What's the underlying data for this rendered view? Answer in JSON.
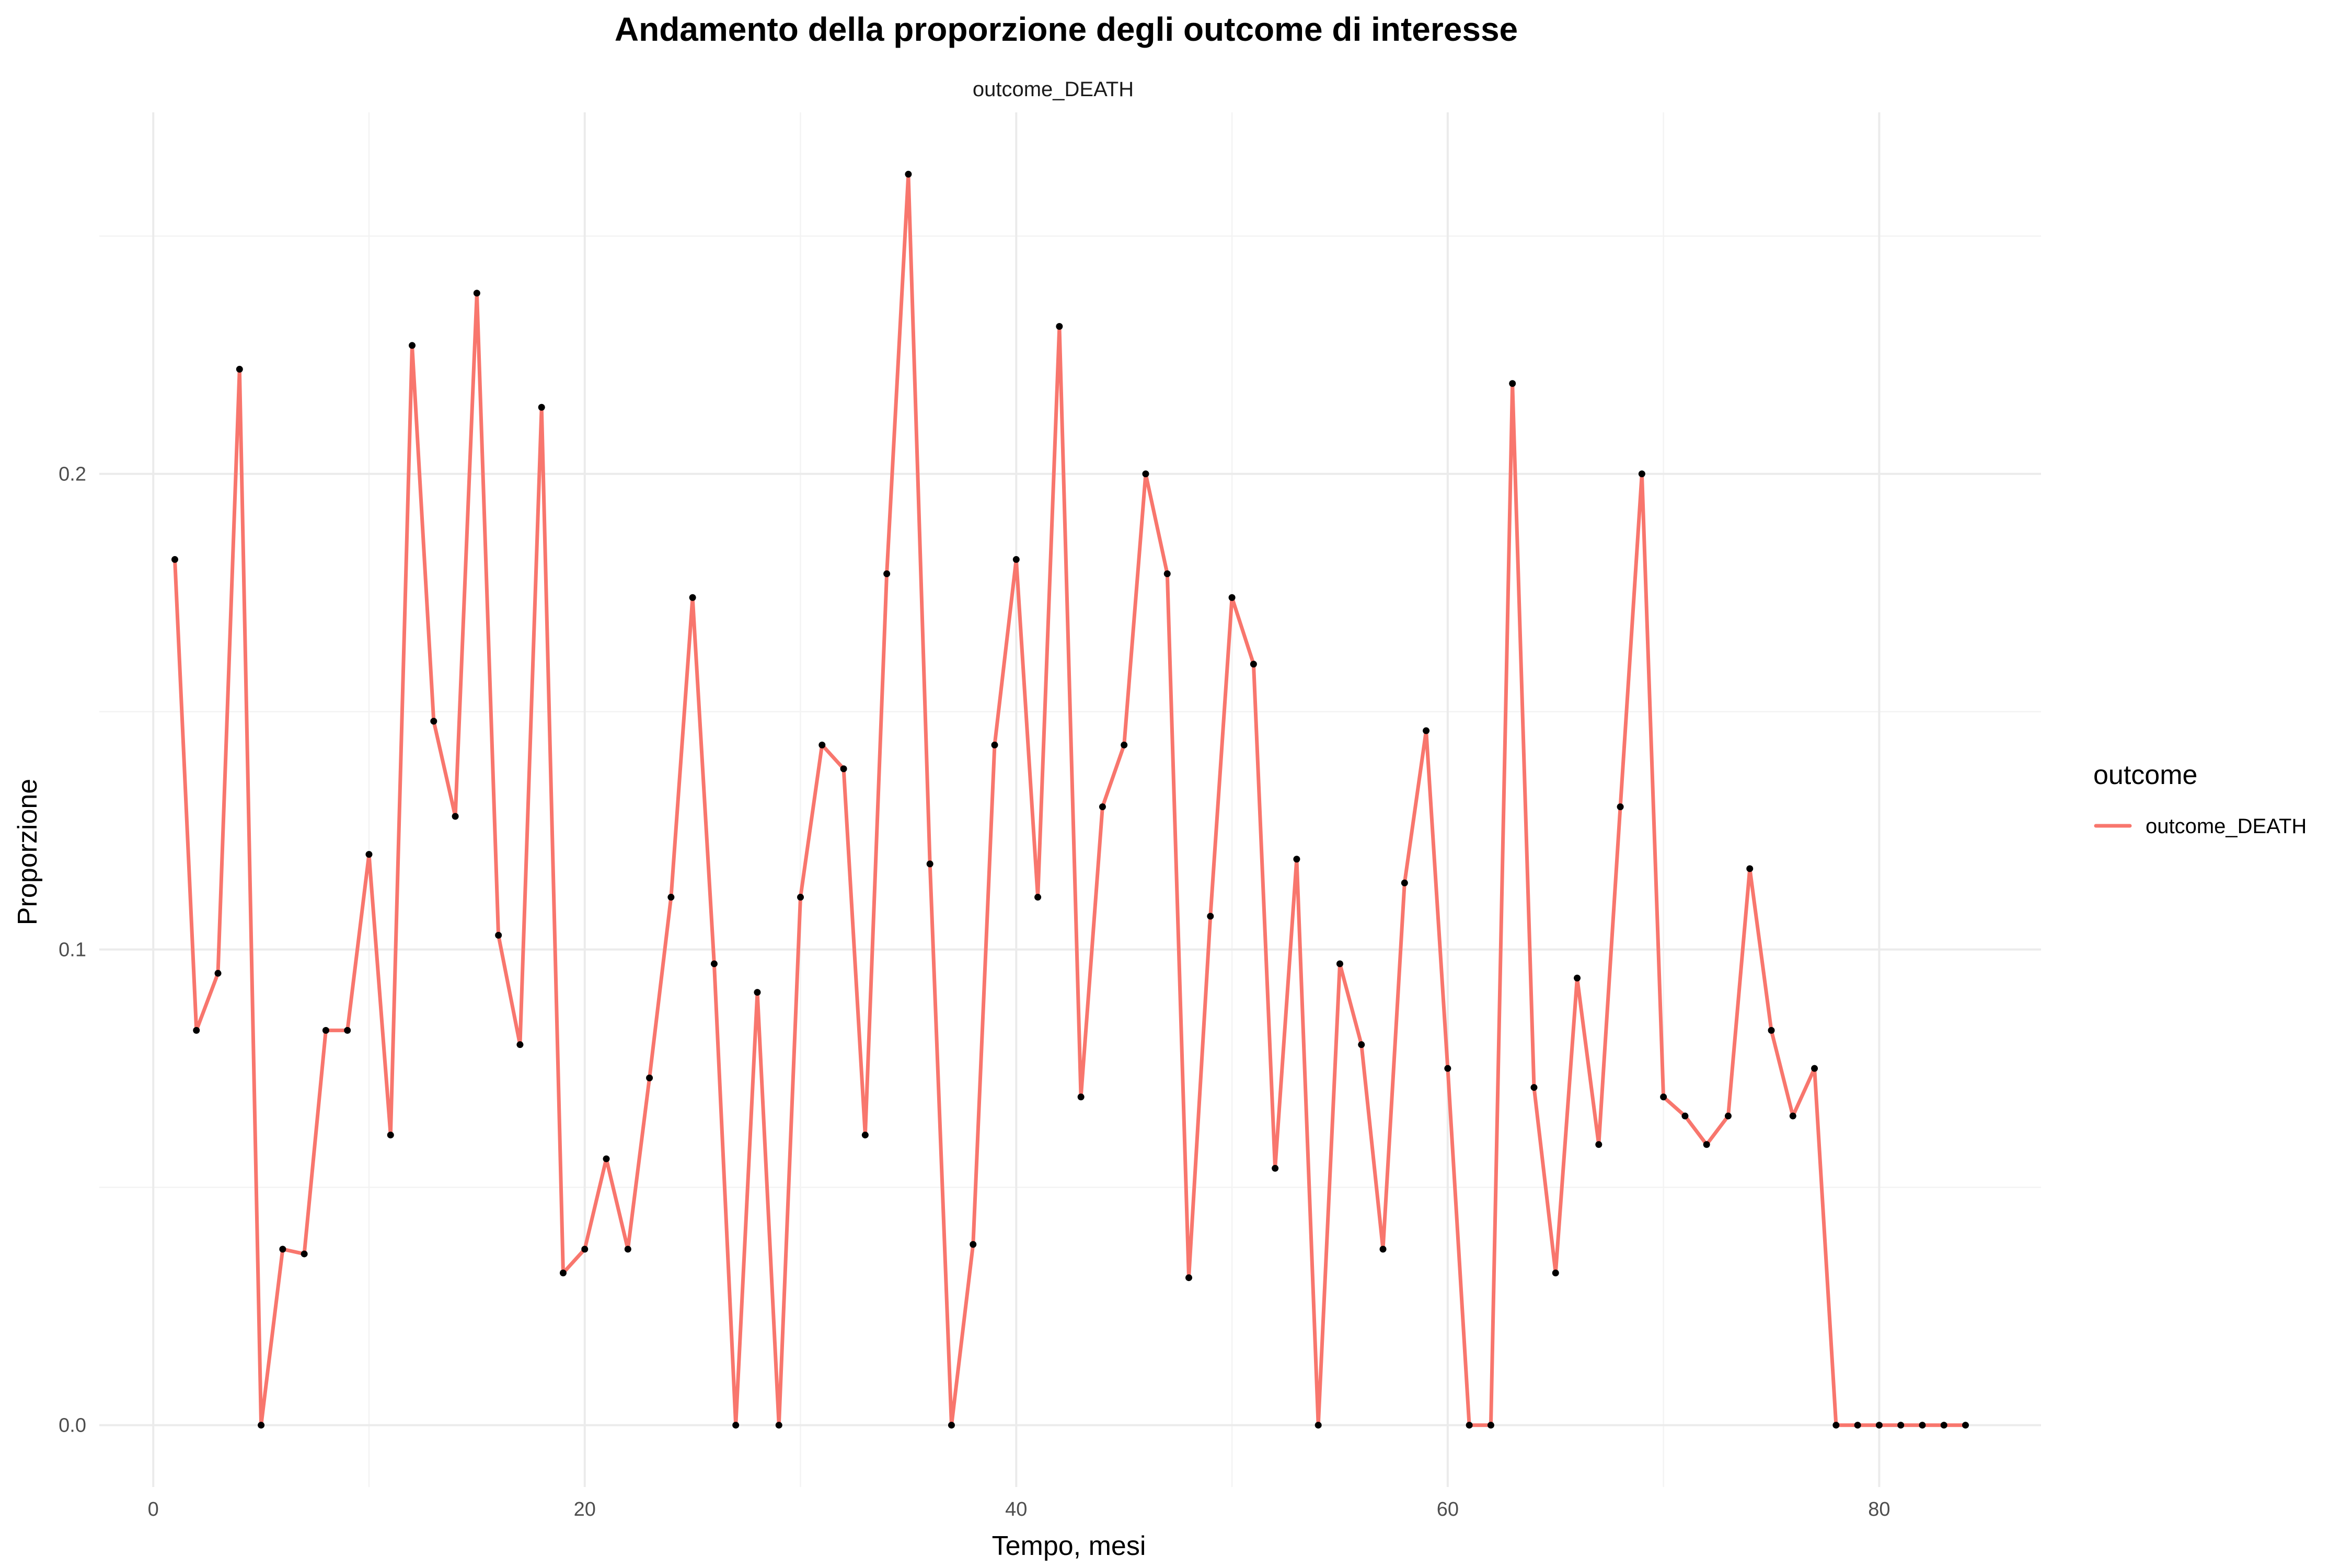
{
  "chart_data": {
    "type": "line",
    "title": "Andamento della proporzione degli outcome di interesse",
    "subtitle": "outcome_DEATH",
    "xlabel": "Tempo, mesi",
    "ylabel": "Proporzione",
    "xlim": [
      -2.5,
      87.5
    ],
    "ylim": [
      -0.013,
      0.276
    ],
    "x_ticks": [
      0,
      20,
      40,
      60,
      80
    ],
    "x_tick_labels": [
      "0",
      "20",
      "40",
      "60",
      "80"
    ],
    "x_minor_ticks": [
      10,
      30,
      50,
      70
    ],
    "y_ticks": [
      0,
      0.1,
      0.2
    ],
    "y_tick_labels": [
      "0.0",
      "0.1",
      "0.2"
    ],
    "y_minor_ticks": [
      0.05,
      0.15,
      0.25
    ],
    "grid": true,
    "legend": {
      "title": "outcome",
      "position": "right"
    },
    "series": [
      {
        "name": "outcome_DEATH",
        "color": "#F8766D",
        "point_color": "#000000",
        "x": [
          1,
          2,
          3,
          4,
          5,
          6,
          7,
          8,
          9,
          10,
          11,
          12,
          13,
          14,
          15,
          16,
          17,
          18,
          19,
          20,
          21,
          22,
          23,
          24,
          25,
          26,
          27,
          28,
          29,
          30,
          31,
          32,
          33,
          34,
          35,
          36,
          37,
          38,
          39,
          40,
          41,
          42,
          43,
          44,
          45,
          46,
          47,
          48,
          49,
          50,
          51,
          52,
          53,
          54,
          55,
          56,
          57,
          58,
          59,
          60,
          61,
          62,
          63,
          64,
          65,
          66,
          67,
          68,
          69,
          70,
          71,
          72,
          73,
          74,
          75,
          76,
          77,
          78,
          79,
          80,
          81,
          82,
          83,
          84
        ],
        "y": [
          0.182,
          0.083,
          0.095,
          0.222,
          0.0,
          0.037,
          0.036,
          0.083,
          0.083,
          0.12,
          0.061,
          0.227,
          0.148,
          0.128,
          0.238,
          0.103,
          0.08,
          0.214,
          0.032,
          0.037,
          0.056,
          0.037,
          0.073,
          0.111,
          0.174,
          0.097,
          0.0,
          0.091,
          0.0,
          0.111,
          0.143,
          0.138,
          0.061,
          0.179,
          0.263,
          0.118,
          0.0,
          0.038,
          0.143,
          0.182,
          0.111,
          0.231,
          0.069,
          0.13,
          0.143,
          0.2,
          0.179,
          0.031,
          0.107,
          0.174,
          0.16,
          0.054,
          0.119,
          0.0,
          0.097,
          0.08,
          0.037,
          0.114,
          0.146,
          0.075,
          0.0,
          0.0,
          0.219,
          0.071,
          0.032,
          0.094,
          0.059,
          0.13,
          0.2,
          0.069,
          0.065,
          0.059,
          0.065,
          0.117,
          0.083,
          0.065,
          0.075,
          0.0,
          0.0,
          0.0,
          0.0,
          0.0,
          0.0,
          0.0
        ]
      }
    ]
  }
}
